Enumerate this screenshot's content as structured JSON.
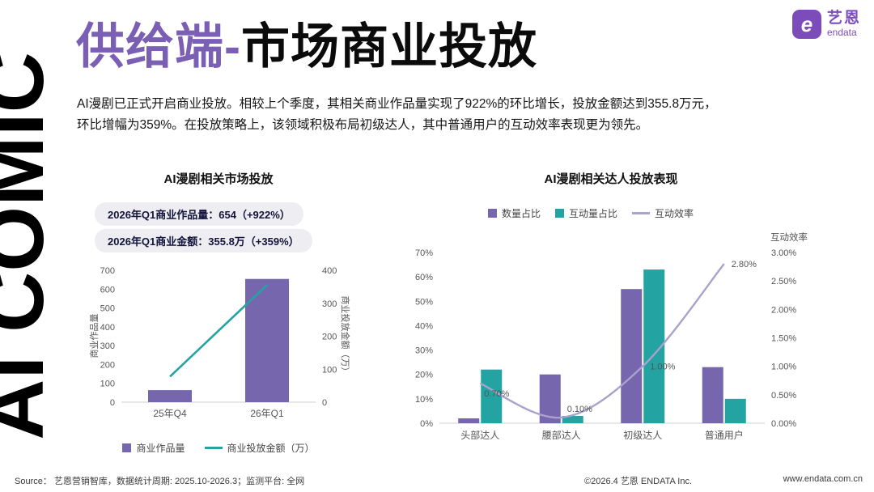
{
  "page": {
    "side_text": "AI COMIC",
    "title_accent": "供给端-",
    "title_rest": "市场商业投放",
    "intro_line1": "AI漫剧已正式开启商业投放。相较上个季度，其相关商业作品量实现了922%的环比增长，投放金额达到355.8万元，",
    "intro_line2": "环比增幅为359%。在投放策略上，该领域积极布局初级达人，其中普通用户的互动效率表现更为领先。"
  },
  "logo": {
    "brand_cn": "艺恩",
    "brand_en": "endata",
    "mark_letter": "e"
  },
  "colors": {
    "purple": "#7566ad",
    "purple_title": "#7a5fb5",
    "teal": "#23a3a1",
    "light_purple": "#a9a2cc",
    "logo": "#7d4cbb"
  },
  "chart_data": [
    {
      "type": "bar+line",
      "title": "AI漫剧相关市场投放",
      "badges": [
        "2026年Q1商业作品量：654（+922%）",
        "2026年Q1商业金额：355.8万（+359%）"
      ],
      "categories": [
        "25年Q4",
        "26年Q1"
      ],
      "series": [
        {
          "name": "商业作品量",
          "type": "bar",
          "axis": "left",
          "values": [
            64,
            654
          ]
        },
        {
          "name": "商业投放金额（万）",
          "type": "line",
          "axis": "right",
          "values": [
            77.5,
            355.8
          ]
        }
      ],
      "left_axis": {
        "label": "商业作品量",
        "min": 0,
        "max": 700,
        "step": 100
      },
      "right_axis": {
        "label": "商业投放金额（万）",
        "min": 0,
        "max": 400,
        "step": 100
      },
      "grid": false,
      "legend_position": "bottom"
    },
    {
      "type": "bar+line",
      "title": "AI漫剧相关达人投放表现",
      "categories": [
        "头部达人",
        "腰部达人",
        "初级达人",
        "普通用户"
      ],
      "series": [
        {
          "name": "数量占比",
          "type": "bar",
          "axis": "left",
          "values": [
            2,
            20,
            55,
            23
          ]
        },
        {
          "name": "互动量占比",
          "type": "bar",
          "axis": "left",
          "values": [
            22,
            3,
            63,
            10
          ]
        },
        {
          "name": "互动效率",
          "type": "line",
          "axis": "right",
          "values": [
            0.7,
            0.1,
            1.0,
            2.8
          ],
          "labels": [
            "0.70%",
            "0.10%",
            "1.00%",
            "2.80%"
          ]
        }
      ],
      "left_axis": {
        "min": 0,
        "max": 70,
        "step": 10,
        "format": "percent"
      },
      "right_axis": {
        "label": "互动效率",
        "min": 0,
        "max": 3,
        "step": 0.5,
        "format": "percent2"
      },
      "grid": false,
      "legend_position": "top"
    }
  ],
  "footer": {
    "source": "Source： 艺恩营销智库，数据统计周期: 2025.10-2026.3；监测平台: 全网",
    "copyright": "©2026.4 艺恩 ENDATA Inc.",
    "website": "www.endata.com.cn"
  }
}
